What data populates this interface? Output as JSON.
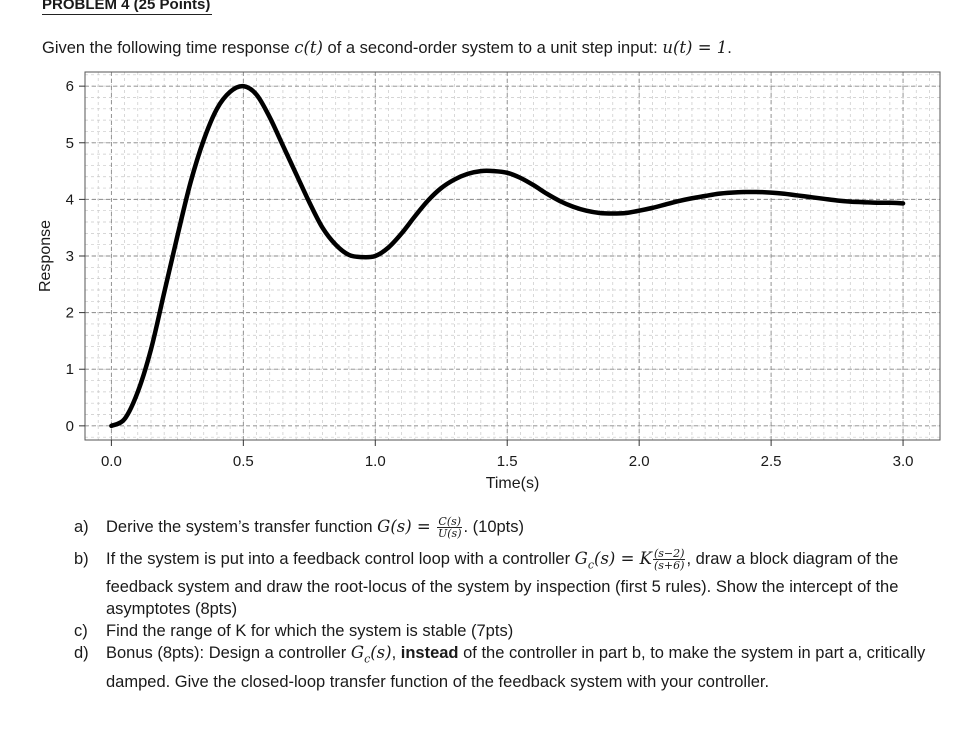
{
  "header": {
    "title": "PROBLEM 4 (25 Points)"
  },
  "intro": {
    "text_before": "Given the following time response ",
    "c_t": "c(t)",
    "text_middle": " of a second-order system to a unit step input: ",
    "u_t_eq": "u(t) = 1",
    "text_end": "."
  },
  "chart_data": {
    "type": "line",
    "xlabel": "Time(s)",
    "ylabel": "Response",
    "xlim": [
      -0.1,
      3.14
    ],
    "ylim": [
      -0.25,
      6.25
    ],
    "xticks": [
      0.0,
      0.5,
      1.0,
      1.5,
      2.0,
      2.5,
      3.0
    ],
    "xtick_labels": [
      "0.0",
      "0.5",
      "1.0",
      "1.5",
      "2.0",
      "2.5",
      "3.0"
    ],
    "yticks": [
      0,
      1,
      2,
      3,
      4,
      5,
      6
    ],
    "ytick_labels": [
      "0",
      "1",
      "2",
      "3",
      "4",
      "5",
      "6"
    ],
    "grid": true,
    "series": [
      {
        "color": "#000000",
        "x": [
          0.0,
          0.05,
          0.1,
          0.15,
          0.2,
          0.25,
          0.3,
          0.35,
          0.4,
          0.45,
          0.5,
          0.55,
          0.6,
          0.65,
          0.7,
          0.75,
          0.8,
          0.85,
          0.9,
          0.95,
          1.0,
          1.05,
          1.1,
          1.15,
          1.2,
          1.25,
          1.3,
          1.35,
          1.4,
          1.45,
          1.5,
          1.55,
          1.6,
          1.65,
          1.7,
          1.75,
          1.8,
          1.85,
          1.9,
          1.95,
          2.0,
          2.05,
          2.1,
          2.15,
          2.2,
          2.25,
          2.3,
          2.35,
          2.4,
          2.45,
          2.5,
          2.55,
          2.6,
          2.65,
          2.7,
          2.75,
          2.8,
          2.85,
          2.9,
          2.95,
          3.0
        ],
        "y": [
          0.0,
          0.12,
          0.6,
          1.35,
          2.35,
          3.35,
          4.3,
          5.05,
          5.6,
          5.9,
          6.0,
          5.85,
          5.45,
          4.95,
          4.45,
          3.95,
          3.5,
          3.2,
          3.02,
          2.98,
          3.0,
          3.15,
          3.4,
          3.7,
          3.98,
          4.2,
          4.35,
          4.45,
          4.5,
          4.5,
          4.47,
          4.38,
          4.25,
          4.1,
          3.97,
          3.87,
          3.8,
          3.76,
          3.75,
          3.76,
          3.8,
          3.85,
          3.91,
          3.97,
          4.02,
          4.06,
          4.1,
          4.12,
          4.13,
          4.13,
          4.12,
          4.1,
          4.07,
          4.04,
          4.01,
          3.98,
          3.96,
          3.95,
          3.94,
          3.94,
          3.93
        ]
      }
    ]
  },
  "questions": {
    "a": {
      "label": "a)",
      "text": "Derive the system’s transfer function ",
      "G_s": "G(s) = ",
      "frac_num": "C(s)",
      "frac_den": "U(s)",
      "suffix": ". (10pts)"
    },
    "b": {
      "label": "b)",
      "text1": "If the system is put into a feedback control loop with a controller ",
      "Gc": "G",
      "Gc_sub": "c",
      "Gc_args": "(s) = K",
      "frac_num": "(s−2)",
      "frac_den": "(s+6)",
      "text2": ", draw a block diagram of the feedback system and draw the root-locus of the system by inspection (first 5 rules). Show the intercept of the asymptotes (8pts)"
    },
    "c": {
      "label": "c)",
      "text": "Find the range of K for which the system is stable (7pts)"
    },
    "d": {
      "label": "d)",
      "text1": "Bonus (8pts): Design a controller ",
      "Gc": "G",
      "Gc_sub": "c",
      "Gc_args": "(s)",
      "comma": ", ",
      "bold": "instead",
      "text2": " of the controller in part b, to make the system in part a, critically damped. Give the closed-loop transfer function of the feedback system with your controller."
    }
  }
}
